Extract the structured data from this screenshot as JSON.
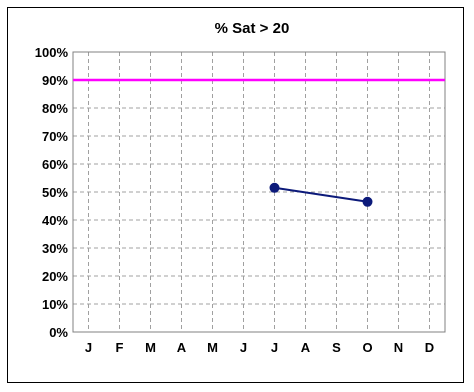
{
  "chart_data": {
    "type": "line",
    "title": "% Sat > 20",
    "xlabel": "",
    "ylabel": "",
    "categories": [
      "J",
      "F",
      "M",
      "A",
      "M",
      "J",
      "J",
      "A",
      "S",
      "O",
      "N",
      "D"
    ],
    "y_ticks": [
      "0%",
      "10%",
      "20%",
      "30%",
      "40%",
      "50%",
      "60%",
      "70%",
      "80%",
      "90%",
      "100%"
    ],
    "ylim": [
      0,
      100
    ],
    "grid": true,
    "legend": "none",
    "series": [
      {
        "values": [
          null,
          null,
          null,
          null,
          null,
          null,
          51.5,
          null,
          null,
          46.5,
          null,
          null
        ],
        "color": "#0c1a7a"
      }
    ],
    "reference_line": {
      "value": 90,
      "color": "#ff00ff"
    }
  }
}
